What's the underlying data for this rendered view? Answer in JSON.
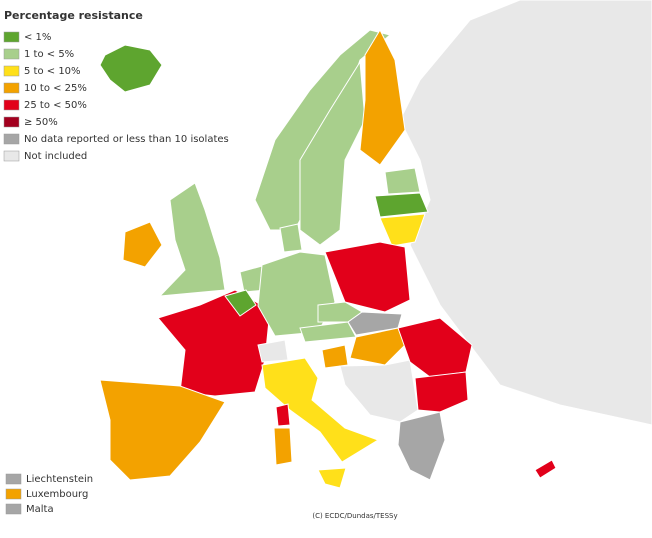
{
  "title": "Percentage resistance",
  "legend": [
    {
      "label": "< 1%",
      "color": "#5ea52f"
    },
    {
      "label": "1 to < 5%",
      "color": "#a8cf8c"
    },
    {
      "label": "5 to < 10%",
      "color": "#ffe01a"
    },
    {
      "label": "10 to < 25%",
      "color": "#f3a200"
    },
    {
      "label": "25 to < 50%",
      "color": "#e2001a"
    },
    {
      "label": "≥ 50%",
      "color": "#a3001f"
    },
    {
      "label": "No data reported or less than 10 isolates",
      "color": "#a6a6a6"
    },
    {
      "label": "Not included",
      "color": "#e8e8e8"
    }
  ],
  "small_countries": [
    {
      "label": "Liechtenstein",
      "color": "#a6a6a6"
    },
    {
      "label": "Luxembourg",
      "color": "#f3a200"
    },
    {
      "label": "Malta",
      "color": "#a6a6a6"
    }
  ],
  "credit": "(C) ECDC/Dundas/TESSy"
}
